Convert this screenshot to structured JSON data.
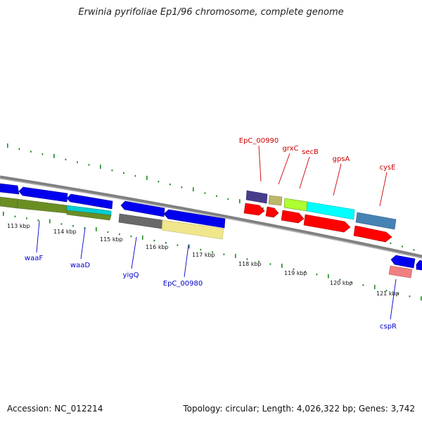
{
  "title": "Erwinia pyrifoliae Ep1/96 chromosome, complete genome",
  "accession": "Accession: NC_012214",
  "summary": "Topology: circular; Length: 4,026,322 bp; Genes: 3,742",
  "colors": {
    "backbone": "#888888",
    "tick": "#228b22",
    "forward_label": "#cc0000",
    "reverse_label": "#0000cc"
  },
  "kbp_labels": [
    "113 kbp",
    "114 kbp",
    "115 kbp",
    "116 kbp",
    "117 kbp",
    "118 kbp",
    "119 kbp",
    "120 kbp",
    "121 kbp"
  ],
  "forward_genes": [
    "EpC_00990",
    "grxC",
    "secB",
    "gpsA",
    "cysE"
  ],
  "reverse_genes": [
    "waaF",
    "waaD",
    "yigQ",
    "EpC_00980",
    "cspR"
  ]
}
